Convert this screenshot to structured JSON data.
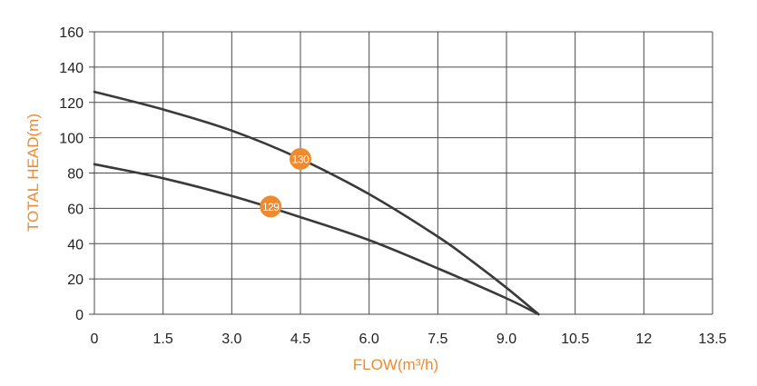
{
  "colors": {
    "curve": "#3a3a3a",
    "grid": "#4a4a4a",
    "accent": "#ef8a2e",
    "tick_text": "#222222"
  },
  "chart_data": {
    "type": "line",
    "xlabel": "FLOW(m³/h)",
    "ylabel": "TOTAL HEAD(m)",
    "xlim": [
      0,
      13.5
    ],
    "ylim": [
      0,
      160
    ],
    "x_ticks": [
      "0",
      "1.5",
      "3.0",
      "4.5",
      "6.0",
      "7.5",
      "9.0",
      "10.5",
      "12",
      "13.5"
    ],
    "y_ticks": [
      "0",
      "20",
      "40",
      "60",
      "80",
      "100",
      "120",
      "140",
      "160"
    ],
    "grid": true,
    "legend": "none",
    "series": [
      {
        "name": "130",
        "label_at": [
          4.5,
          88
        ],
        "points": [
          [
            0,
            126
          ],
          [
            1.5,
            116
          ],
          [
            3.0,
            104
          ],
          [
            4.5,
            88
          ],
          [
            6.0,
            68
          ],
          [
            7.5,
            44
          ],
          [
            8.25,
            30
          ],
          [
            9.0,
            15
          ],
          [
            9.7,
            0
          ]
        ]
      },
      {
        "name": "129",
        "label_at": [
          3.85,
          61
        ],
        "points": [
          [
            0,
            85
          ],
          [
            1.5,
            77
          ],
          [
            3.0,
            67
          ],
          [
            4.5,
            55
          ],
          [
            6.0,
            42
          ],
          [
            7.5,
            26
          ],
          [
            9.0,
            9
          ],
          [
            9.7,
            0
          ]
        ]
      }
    ]
  }
}
